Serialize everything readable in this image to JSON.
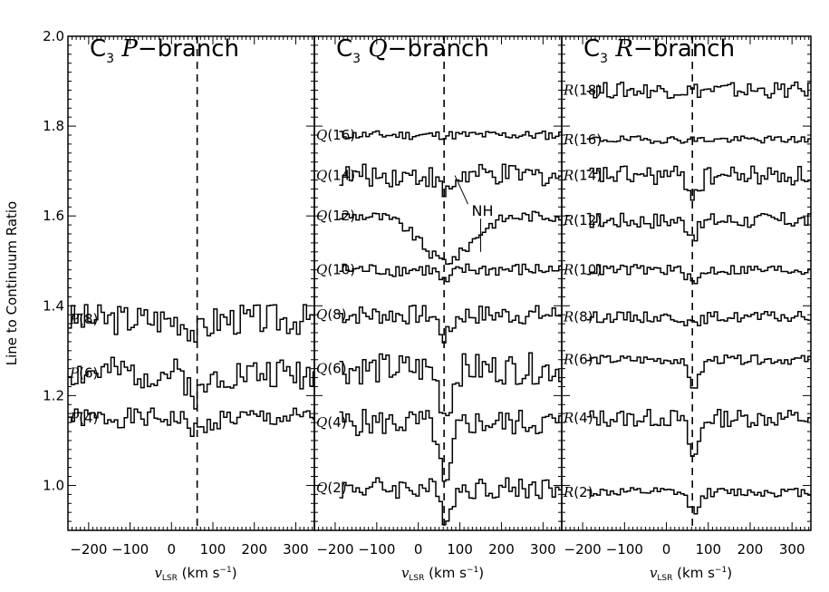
{
  "chart_data": [
    {
      "type": "line",
      "panel": "P",
      "title": {
        "species": "C",
        "sub": "3",
        "branch": "P",
        "suffix": "−branch"
      },
      "xlabel": {
        "sym": "v",
        "sub": "LSR",
        "unit": "(km s",
        "sup": "−1",
        "close": ")"
      },
      "ylabel": "Line to Continuum Ratio",
      "xlim": [
        -250,
        345
      ],
      "ylim": [
        0.9,
        2.0
      ],
      "xticks": [
        -200,
        -100,
        0,
        100,
        200,
        300
      ],
      "xtick_labels": [
        "−200",
        "−100",
        "0",
        "100",
        "200",
        "300"
      ],
      "yticks": [
        1.0,
        1.2,
        1.4,
        1.6,
        1.8,
        2.0
      ],
      "ytick_labels": [
        "1.0",
        "1.2",
        "1.4",
        "1.6",
        "1.8",
        "2.0"
      ],
      "vline": 62,
      "x": [
        -250,
        -240,
        -230,
        -220,
        -210,
        -200,
        -190,
        -180,
        -170,
        -160,
        -150,
        -140,
        -130,
        -120,
        -110,
        -100,
        -90,
        -80,
        -70,
        -60,
        -50,
        -40,
        -30,
        -20,
        -10,
        0,
        10,
        20,
        30,
        40,
        50,
        60,
        70,
        80,
        90,
        100,
        110,
        120,
        130,
        140,
        150,
        160,
        170,
        180,
        190,
        200,
        210,
        220,
        230,
        240,
        250,
        260,
        270,
        280,
        290,
        300,
        310,
        320,
        330,
        340
      ],
      "series": [
        {
          "label": {
            "letter": "P",
            "num": "(4)"
          },
          "baseline": 1.15,
          "amp": 0.022,
          "dip": 0.03,
          "dipw": 22,
          "seed": 1,
          "xstart": -250
        },
        {
          "label": {
            "letter": "P",
            "num": "(6)"
          },
          "baseline": 1.25,
          "amp": 0.035,
          "dip": 0.05,
          "dipw": 20,
          "seed": 2,
          "xstart": -250
        },
        {
          "label": {
            "letter": "P",
            "num": "(8)"
          },
          "baseline": 1.37,
          "amp": 0.035,
          "dip": 0.03,
          "dipw": 20,
          "seed": 3,
          "xstart": -250
        }
      ]
    },
    {
      "type": "line",
      "panel": "Q",
      "title": {
        "species": "C",
        "sub": "3",
        "branch": "Q",
        "suffix": "−branch"
      },
      "xlabel": {
        "sym": "v",
        "sub": "LSR",
        "unit": "(km s",
        "sup": "−1",
        "close": ")"
      },
      "ylabel": "",
      "xlim": [
        -250,
        345
      ],
      "ylim": [
        0.9,
        2.0
      ],
      "xticks": [
        -200,
        -100,
        0,
        100,
        200,
        300
      ],
      "xtick_labels": [
        "−200",
        "−100",
        "0",
        "100",
        "200",
        "300"
      ],
      "yticks": [
        1.0,
        1.2,
        1.4,
        1.6,
        1.8,
        2.0
      ],
      "vline": 62,
      "annotation": {
        "text": "NH",
        "x": 150,
        "y": 1.61
      },
      "series": [
        {
          "label": {
            "letter": "Q",
            "num": "(2)"
          },
          "baseline": 0.995,
          "amp": 0.025,
          "dip": 0.06,
          "dipw": 14,
          "seed": 4,
          "xstart": -190
        },
        {
          "label": {
            "letter": "Q",
            "num": "(4)"
          },
          "baseline": 1.14,
          "amp": 0.03,
          "dip": 0.15,
          "dipw": 14,
          "seed": 5,
          "xstart": -190
        },
        {
          "label": {
            "letter": "Q",
            "num": "(6)"
          },
          "baseline": 1.26,
          "amp": 0.035,
          "dip": 0.1,
          "dipw": 14,
          "seed": 6,
          "xstart": -190
        },
        {
          "label": {
            "letter": "Q",
            "num": "(8)"
          },
          "baseline": 1.38,
          "amp": 0.022,
          "dip": 0.05,
          "dipw": 14,
          "seed": 7,
          "xstart": -190
        },
        {
          "label": {
            "letter": "Q",
            "num": "(10)"
          },
          "baseline": 1.48,
          "amp": 0.015,
          "dip": 0.03,
          "dipw": 14,
          "seed": 8,
          "xstart": -190
        },
        {
          "label": {
            "letter": "Q",
            "num": "(12)"
          },
          "baseline": 1.6,
          "amp": 0.012,
          "dip": 0.1,
          "dipw": 60,
          "seed": 9,
          "xstart": -190
        },
        {
          "label": {
            "letter": "Q",
            "num": "(14)"
          },
          "baseline": 1.69,
          "amp": 0.025,
          "dip": 0.04,
          "dipw": 16,
          "seed": 10,
          "xstart": -190
        },
        {
          "label": {
            "letter": "Q",
            "num": "(16)"
          },
          "baseline": 1.78,
          "amp": 0.01,
          "dip": 0.0,
          "dipw": 14,
          "seed": 11,
          "xstart": -190
        }
      ]
    },
    {
      "type": "line",
      "panel": "R",
      "title": {
        "species": "C",
        "sub": "3",
        "branch": "R",
        "suffix": "−branch"
      },
      "xlabel": {
        "sym": "v",
        "sub": "LSR",
        "unit": "(km s",
        "sup": "−1",
        "close": ")"
      },
      "ylabel": "",
      "xlim": [
        -250,
        345
      ],
      "ylim": [
        0.9,
        2.0
      ],
      "xticks": [
        -200,
        -100,
        0,
        100,
        200,
        300
      ],
      "xtick_labels": [
        "−200",
        "−100",
        "0",
        "100",
        "200",
        "300"
      ],
      "yticks": [
        1.0,
        1.2,
        1.4,
        1.6,
        1.8,
        2.0
      ],
      "vline": 62,
      "series": [
        {
          "label": {
            "letter": "R",
            "num": "(2)"
          },
          "baseline": 0.985,
          "amp": 0.01,
          "dip": 0.04,
          "dipw": 14,
          "seed": 12,
          "xstart": -190
        },
        {
          "label": {
            "letter": "R",
            "num": "(4)"
          },
          "baseline": 1.15,
          "amp": 0.02,
          "dip": 0.09,
          "dipw": 12,
          "seed": 13,
          "xstart": -190
        },
        {
          "label": {
            "letter": "R",
            "num": "(6)"
          },
          "baseline": 1.28,
          "amp": 0.01,
          "dip": 0.06,
          "dipw": 14,
          "seed": 14,
          "xstart": -190
        },
        {
          "label": {
            "letter": "R",
            "num": "(8)"
          },
          "baseline": 1.375,
          "amp": 0.012,
          "dip": 0.02,
          "dipw": 14,
          "seed": 15,
          "xstart": -190
        },
        {
          "label": {
            "letter": "R",
            "num": "(10)"
          },
          "baseline": 1.48,
          "amp": 0.012,
          "dip": 0.03,
          "dipw": 14,
          "seed": 16,
          "xstart": -190
        },
        {
          "label": {
            "letter": "R",
            "num": "(12)"
          },
          "baseline": 1.59,
          "amp": 0.018,
          "dip": 0.03,
          "dipw": 14,
          "seed": 17,
          "xstart": -190
        },
        {
          "label": {
            "letter": "R",
            "num": "(14)"
          },
          "baseline": 1.69,
          "amp": 0.022,
          "dip": 0.04,
          "dipw": 14,
          "seed": 18,
          "xstart": -190
        },
        {
          "label": {
            "letter": "R",
            "num": "(16)"
          },
          "baseline": 1.77,
          "amp": 0.008,
          "dip": 0.0,
          "dipw": 14,
          "seed": 19,
          "xstart": -190
        },
        {
          "label": {
            "letter": "R",
            "num": "(18)"
          },
          "baseline": 1.88,
          "amp": 0.018,
          "dip": 0.0,
          "dipw": 14,
          "seed": 20,
          "xstart": -190
        }
      ]
    }
  ]
}
